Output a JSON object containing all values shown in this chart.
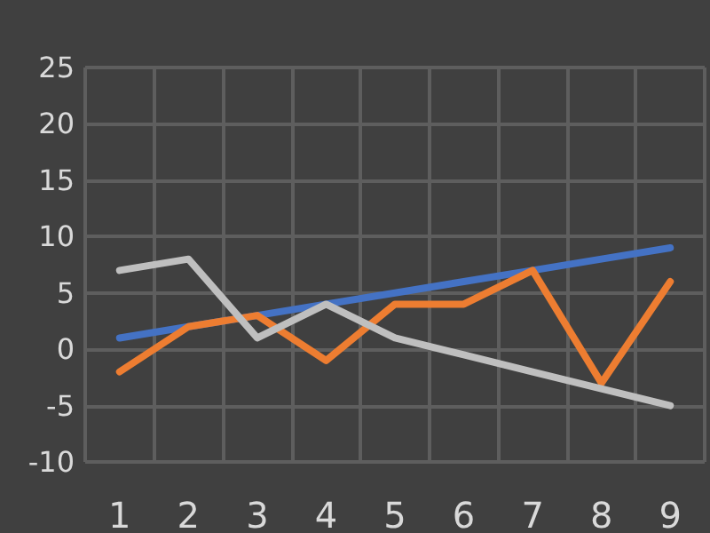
{
  "chart_data": {
    "type": "line",
    "categories": [
      "1",
      "2",
      "3",
      "4",
      "5",
      "6",
      "7",
      "8",
      "9"
    ],
    "series": [
      {
        "color": "#4472c4",
        "values": [
          1,
          2,
          3,
          4,
          5,
          6,
          7,
          8,
          9
        ]
      },
      {
        "color": "#ed7d31",
        "values": [
          -2,
          2,
          3,
          -1,
          4,
          4,
          7,
          -3,
          6
        ]
      },
      {
        "color": "#bfbfbf",
        "values": [
          7,
          8,
          1,
          4,
          1,
          -0.5,
          -2,
          -3.5,
          -5
        ]
      }
    ],
    "ylim": [
      -10,
      25
    ],
    "yticks": [
      -10,
      -5,
      0,
      5,
      10,
      15,
      20,
      25
    ],
    "grid": true,
    "marker": "none",
    "line_style": "solid"
  }
}
